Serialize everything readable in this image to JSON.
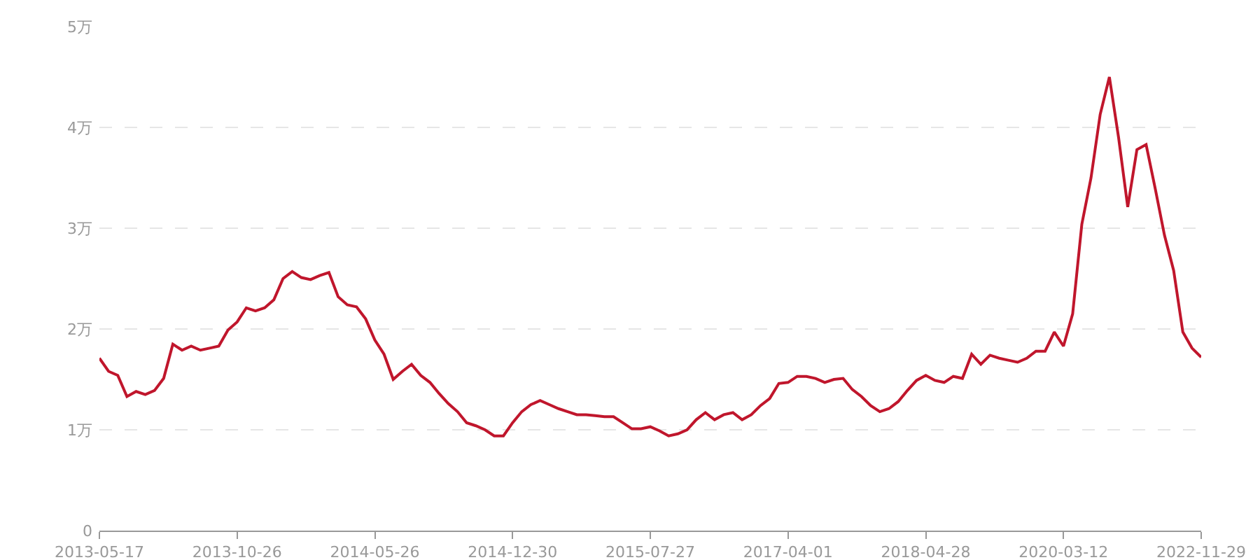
{
  "chart_data": {
    "type": "line",
    "categories": [
      "2013-05-17",
      null,
      null,
      null,
      null,
      null,
      null,
      null,
      null,
      null,
      null,
      null,
      null,
      null,
      null,
      "2013-10-26",
      null,
      null,
      null,
      null,
      null,
      null,
      null,
      null,
      null,
      null,
      null,
      null,
      null,
      null,
      "2014-05-26",
      null,
      null,
      null,
      null,
      null,
      null,
      null,
      null,
      null,
      null,
      null,
      null,
      null,
      null,
      "2014-12-30",
      null,
      null,
      null,
      null,
      null,
      null,
      null,
      null,
      null,
      null,
      null,
      null,
      null,
      null,
      "2015-07-27",
      null,
      null,
      null,
      null,
      null,
      null,
      null,
      null,
      null,
      null,
      null,
      null,
      null,
      null,
      "2017-04-01",
      null,
      null,
      null,
      null,
      null,
      null,
      null,
      null,
      null,
      null,
      null,
      null,
      null,
      null,
      "2018-04-28",
      null,
      null,
      null,
      null,
      null,
      null,
      null,
      null,
      null,
      null,
      null,
      null,
      null,
      null,
      "2020-03-12",
      null,
      null,
      null,
      null,
      null,
      null,
      null,
      null,
      null,
      null,
      null,
      null,
      null,
      null,
      "2022-11-29"
    ],
    "series": [
      {
        "color": "#c0162c",
        "values": [
          1.71,
          1.58,
          1.54,
          1.33,
          1.38,
          1.35,
          1.39,
          1.51,
          1.85,
          1.79,
          1.83,
          1.79,
          1.81,
          1.83,
          1.99,
          2.07,
          2.21,
          2.18,
          2.21,
          2.29,
          2.5,
          2.57,
          2.51,
          2.49,
          2.53,
          2.56,
          2.32,
          2.24,
          2.22,
          2.1,
          1.89,
          1.75,
          1.5,
          1.58,
          1.65,
          1.54,
          1.47,
          1.36,
          1.26,
          1.18,
          1.07,
          1.04,
          1.0,
          0.94,
          0.94,
          1.07,
          1.18,
          1.25,
          1.29,
          1.25,
          1.21,
          1.18,
          1.15,
          1.15,
          1.14,
          1.13,
          1.13,
          1.07,
          1.01,
          1.01,
          1.03,
          0.99,
          0.94,
          0.96,
          1.0,
          1.1,
          1.17,
          1.1,
          1.15,
          1.17,
          1.1,
          1.15,
          1.24,
          1.31,
          1.46,
          1.47,
          1.53,
          1.53,
          1.51,
          1.47,
          1.5,
          1.51,
          1.4,
          1.33,
          1.24,
          1.18,
          1.21,
          1.28,
          1.39,
          1.49,
          1.54,
          1.49,
          1.47,
          1.53,
          1.51,
          1.75,
          1.65,
          1.74,
          1.71,
          1.69,
          1.67,
          1.71,
          1.78,
          1.78,
          1.97,
          1.83,
          2.15,
          3.04,
          3.5,
          4.13,
          4.5,
          3.9,
          3.21,
          3.78,
          3.83,
          3.39,
          2.93,
          2.58,
          1.97,
          1.81,
          1.72
        ]
      }
    ],
    "ylim": [
      0,
      5
    ],
    "yticks": [
      0,
      {
        "value": 1,
        "label": "1万"
      },
      {
        "value": 2,
        "label": "2万"
      },
      {
        "value": 3,
        "label": "3万"
      },
      {
        "value": 4,
        "label": "4万"
      },
      {
        "value": 5,
        "label": "5万"
      }
    ],
    "grid": "y",
    "marker": "none",
    "line_style": "solid"
  }
}
